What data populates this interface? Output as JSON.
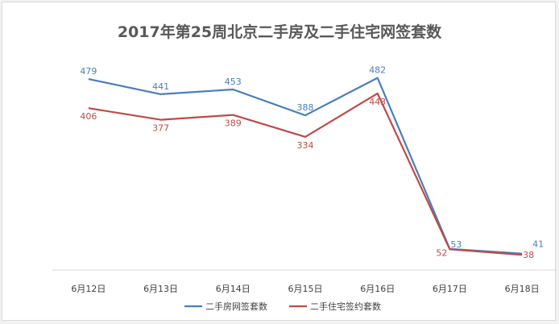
{
  "chart_data": {
    "type": "line",
    "title": "2017年第25周北京二手房及二手住宅网签套数",
    "categories": [
      "6月12日",
      "6月13日",
      "6月14日",
      "6月15日",
      "6月16日",
      "6月17日",
      "6月18日"
    ],
    "ylim": [
      0,
      550
    ],
    "grid": false,
    "legend_position": "bottom",
    "series": [
      {
        "name": "二手房网签套数",
        "color": "#4a7ebb",
        "values": [
          479,
          441,
          453,
          388,
          482,
          53,
          41
        ]
      },
      {
        "name": "二手住宅签约套数",
        "color": "#be4b48",
        "values": [
          406,
          377,
          389,
          334,
          443,
          52,
          38
        ]
      }
    ]
  }
}
